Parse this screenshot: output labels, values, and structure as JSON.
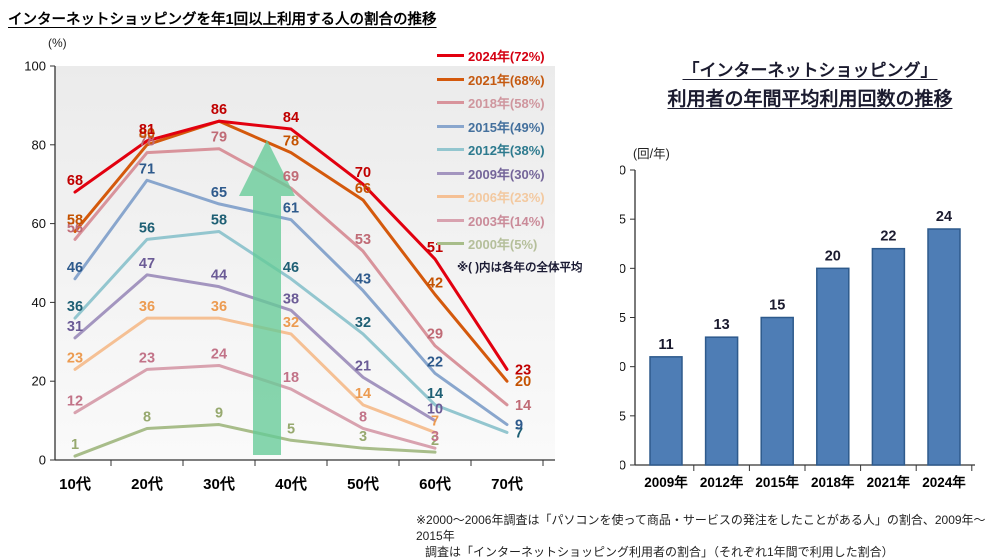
{
  "page_title": "インターネットショッピングを年1回以上利用する人の割合の推移",
  "footnote": {
    "line1": "※2000〜2006年調査は「パソコンを使って商品・サービスの発注をしたことがある人」の割合、2009年〜2015年",
    "line2": "調査は「インターネットショッピング利用者の割合」（それぞれ1年間で利用した割合）"
  },
  "chart_data": [
    {
      "type": "line",
      "title": "インターネットショッピングを年1回以上利用する人の割合の推移",
      "unit_label": "(%)",
      "note": "※( )内は各年の全体平均",
      "annotation": "large green upward arrow between 30代 and 40代",
      "categories": [
        "10代",
        "20代",
        "30代",
        "40代",
        "50代",
        "60代",
        "70代"
      ],
      "ylim": [
        0,
        100
      ],
      "yticks": [
        0,
        20,
        40,
        60,
        80,
        100
      ],
      "legend_position": "top-right",
      "series": [
        {
          "name": "2000年(5%)",
          "line_color": "#a8bd8a",
          "label_color": "#97a96f",
          "legend_color": "#b5bf9b",
          "values": [
            1,
            8,
            9,
            5,
            3,
            2,
            null
          ],
          "labels": [
            "1",
            "8",
            "9",
            "5",
            "3",
            "2",
            null
          ]
        },
        {
          "name": "2003年(14%)",
          "line_color": "#d8a2af",
          "label_color": "#c27388",
          "legend_color": "#ca8b99",
          "values": [
            12,
            23,
            24,
            18,
            8,
            3,
            null
          ],
          "labels": [
            "12",
            "23",
            "24",
            "18",
            "8",
            "3",
            null
          ]
        },
        {
          "name": "2006年(23%)",
          "line_color": "#f5c094",
          "label_color": "#ec9b51",
          "legend_color": "#f3c9a0",
          "values": [
            23,
            36,
            36,
            32,
            14,
            7,
            null
          ],
          "labels": [
            "23",
            "36",
            "36",
            "32",
            "14",
            "7",
            null
          ]
        },
        {
          "name": "2009年(30%)",
          "line_color": "#a395bf",
          "label_color": "#6b5b96",
          "legend_color": "#746599",
          "values": [
            31,
            47,
            44,
            38,
            21,
            10,
            null
          ],
          "labels": [
            "31",
            "47",
            "44",
            "38",
            "21",
            "10",
            null
          ]
        },
        {
          "name": "2012年(38%)",
          "line_color": "#93c6cf",
          "label_color": "#1e5f74",
          "legend_color": "#2d7a8e",
          "values": [
            36,
            56,
            58,
            46,
            32,
            14,
            7
          ],
          "labels": [
            "36",
            "56",
            "58",
            "46",
            "32",
            "14",
            "7"
          ]
        },
        {
          "name": "2015年(49%)",
          "line_color": "#89a6cd",
          "label_color": "#2e5a8c",
          "legend_color": "#44709d",
          "values": [
            46,
            71,
            65,
            61,
            43,
            22,
            9
          ],
          "labels": [
            "46",
            "71",
            "65",
            "61",
            "43",
            "22",
            "9"
          ]
        },
        {
          "name": "2018年(58%)",
          "line_color": "#d8939b",
          "label_color": "#c06b76",
          "legend_color": "#cf969e",
          "values": [
            56,
            78,
            79,
            69,
            53,
            29,
            14
          ],
          "labels": [
            "56",
            "78",
            "79",
            "69",
            "53",
            "29",
            "14"
          ]
        },
        {
          "name": "2021年(68%)",
          "line_color": "#d4590c",
          "label_color": "#c45200",
          "legend_color": "#c55a11",
          "values": [
            58,
            80,
            86,
            78,
            66,
            42,
            20
          ],
          "labels": [
            "58",
            "80",
            null,
            "78",
            "66",
            "42",
            "20"
          ]
        },
        {
          "name": "2024年(72%)",
          "line_color": "#e2000f",
          "label_color": "#c00000",
          "legend_color": "#d40011",
          "values": [
            68,
            81,
            86,
            84,
            70,
            51,
            23
          ],
          "labels": [
            "68",
            "81",
            "86",
            "84",
            "70",
            "51",
            "23"
          ]
        }
      ]
    },
    {
      "type": "bar",
      "title": "「インターネットショッピング」利用者の年間平均利用回数の推移",
      "title_lines": [
        "「インターネットショッピング」",
        "利用者の年間平均利用回数の推移"
      ],
      "unit_label": "(回/年)",
      "categories": [
        "2009年",
        "2012年",
        "2015年",
        "2018年",
        "2021年",
        "2024年"
      ],
      "values": [
        11,
        13,
        15,
        20,
        22,
        24
      ],
      "ylim": [
        0,
        30
      ],
      "yticks": [
        0,
        5,
        10,
        15,
        20,
        25,
        30
      ],
      "bar_color": "#4e7db5",
      "bar_border": "#2e5a8c"
    }
  ]
}
